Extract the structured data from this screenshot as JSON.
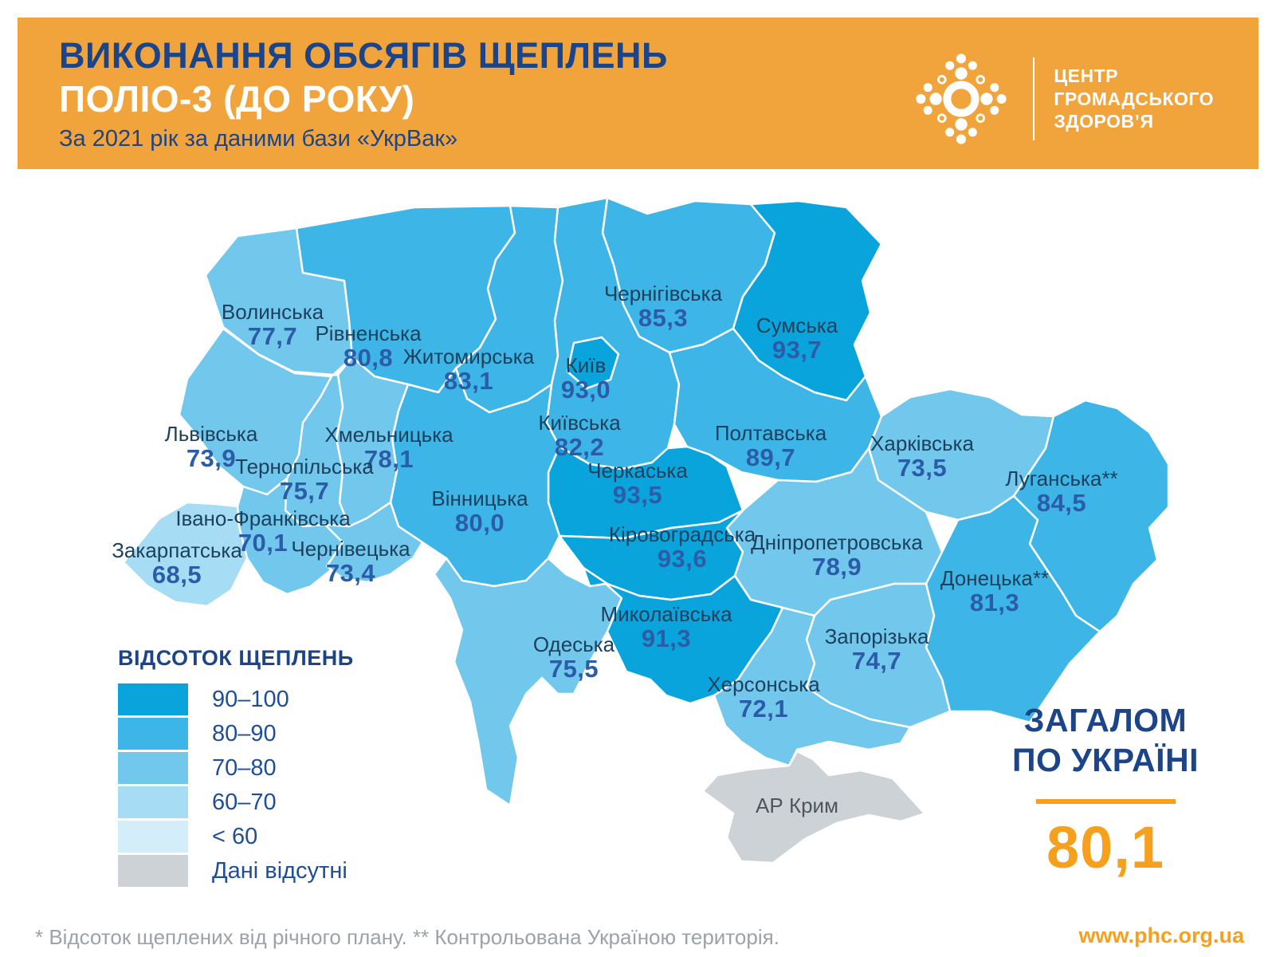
{
  "header": {
    "title_line1": "ВИКОНАННЯ ОБСЯГІВ ЩЕПЛЕНЬ",
    "title_line2": "ПОЛІО-3 (ДО РОКУ)",
    "subtitle": "За 2021 рік за даними бази «УкрВак»",
    "logo_lines": [
      "ЦЕНТР",
      "ГРОМАДСЬКОГО",
      "ЗДОРОВ’Я"
    ]
  },
  "colors": {
    "header_bg": "#F2A43C",
    "accent_orange": "#F6A01E",
    "navy": "#1B4489",
    "region_name_text": "#1B415E",
    "region_value_text": "#2B5CA7",
    "note_grey": "#9BA2A8",
    "map_border": "#FFFFFF"
  },
  "legend": {
    "title": "ВІДСОТОК ЩЕПЛЕНЬ",
    "items": [
      {
        "label": "90–100",
        "color": "#0AA4DC"
      },
      {
        "label": "80–90",
        "color": "#3DB5E6"
      },
      {
        "label": "70–80",
        "color": "#72C7EC"
      },
      {
        "label": "60–70",
        "color": "#A7DDF4"
      },
      {
        "label": "< 60",
        "color": "#D4EEF9"
      },
      {
        "label": "Дані відсутні",
        "color": "#CDD2D7"
      }
    ]
  },
  "total": {
    "line1": "ЗАГАЛОМ",
    "line2": "ПО УКРАЇНІ",
    "value": "80,1"
  },
  "footer": {
    "note": "* Відсоток щеплених від річного плану. ** Контрольована Україною територія.",
    "website": "www.phc.org.ua"
  },
  "chart_data": {
    "type": "choropleth-map",
    "title": "Виконання обсягів щеплень Поліо-3 (до року), 2021, база «УкрВак»",
    "unit": "percent of annual plan",
    "total_ukraine": 80.1,
    "band_colors": {
      "90-100": "#0AA4DC",
      "80-90": "#3DB5E6",
      "70-80": "#72C7EC",
      "60-70": "#A7DDF4",
      "<60": "#D4EEF9",
      "no-data": "#CDD2D7"
    },
    "regions": [
      {
        "id": "volyn",
        "name": "Волинська",
        "value": "77,7",
        "band": "70-80"
      },
      {
        "id": "rivne",
        "name": "Рівненська",
        "value": "80,8",
        "band": "80-90"
      },
      {
        "id": "zhytomyr",
        "name": "Житомирська",
        "value": "83,1",
        "band": "80-90"
      },
      {
        "id": "kyiv_city",
        "name": "Київ",
        "value": "93,0",
        "band": "90-100"
      },
      {
        "id": "kyiv_obl",
        "name": "Київська",
        "value": "82,2",
        "band": "80-90"
      },
      {
        "id": "chernihiv",
        "name": "Чернігівська",
        "value": "85,3",
        "band": "80-90"
      },
      {
        "id": "sumy",
        "name": "Сумська",
        "value": "93,7",
        "band": "90-100"
      },
      {
        "id": "poltava",
        "name": "Полтавська",
        "value": "89,7",
        "band": "80-90"
      },
      {
        "id": "kharkiv",
        "name": "Харківська",
        "value": "73,5",
        "band": "70-80"
      },
      {
        "id": "luhansk",
        "name": "Луганська**",
        "value": "84,5",
        "band": "80-90"
      },
      {
        "id": "donetsk",
        "name": "Донецька**",
        "value": "81,3",
        "band": "80-90"
      },
      {
        "id": "dnipro",
        "name": "Дніпропетровська",
        "value": "78,9",
        "band": "70-80"
      },
      {
        "id": "zaporizhzhia",
        "name": "Запорізька",
        "value": "74,7",
        "band": "70-80"
      },
      {
        "id": "kherson",
        "name": "Херсонська",
        "value": "72,1",
        "band": "70-80"
      },
      {
        "id": "crimea",
        "name": "АР Крим",
        "value": null,
        "band": "no-data"
      },
      {
        "id": "mykolaiv",
        "name": "Миколаївська",
        "value": "91,3",
        "band": "90-100"
      },
      {
        "id": "odesa",
        "name": "Одеська",
        "value": "75,5",
        "band": "70-80"
      },
      {
        "id": "kirovohrad",
        "name": "Кіровоградська",
        "value": "93,6",
        "band": "90-100"
      },
      {
        "id": "cherkasy",
        "name": "Черкаська",
        "value": "93,5",
        "band": "90-100"
      },
      {
        "id": "vinnytsia",
        "name": "Вінницька",
        "value": "80,0",
        "band": "80-90"
      },
      {
        "id": "khmelnytskyi",
        "name": "Хмельницька",
        "value": "78,1",
        "band": "70-80"
      },
      {
        "id": "ternopil",
        "name": "Тернопільська",
        "value": "75,7",
        "band": "70-80"
      },
      {
        "id": "lviv",
        "name": "Львівська",
        "value": "73,9",
        "band": "70-80"
      },
      {
        "id": "ivano_frankivsk",
        "name": "Івано-Франківська",
        "value": "70,1",
        "band": "70-80"
      },
      {
        "id": "zakarpattia",
        "name": "Закарпатська",
        "value": "68,5",
        "band": "60-70"
      },
      {
        "id": "chernivtsi",
        "name": "Чернівецька",
        "value": "73,4",
        "band": "70-80"
      }
    ]
  }
}
